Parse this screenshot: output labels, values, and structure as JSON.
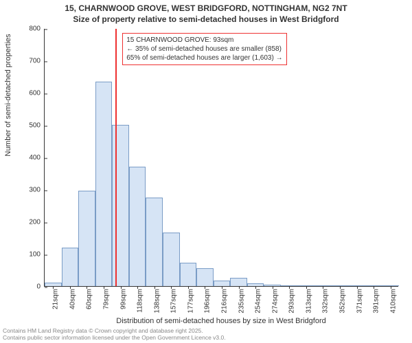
{
  "title": {
    "line1": "15, CHARNWOOD GROVE, WEST BRIDGFORD, NOTTINGHAM, NG2 7NT",
    "line2": "Size of property relative to semi-detached houses in West Bridgford"
  },
  "chart": {
    "type": "histogram",
    "ylim": [
      0,
      800
    ],
    "ytick_step": 100,
    "yticks": [
      0,
      100,
      200,
      300,
      400,
      500,
      600,
      700,
      800
    ],
    "categories": [
      "21sqm",
      "40sqm",
      "60sqm",
      "79sqm",
      "99sqm",
      "118sqm",
      "138sqm",
      "157sqm",
      "177sqm",
      "196sqm",
      "216sqm",
      "235sqm",
      "254sqm",
      "274sqm",
      "293sqm",
      "313sqm",
      "332sqm",
      "352sqm",
      "371sqm",
      "391sqm",
      "410sqm"
    ],
    "values": [
      10,
      120,
      295,
      635,
      500,
      370,
      275,
      165,
      73,
      55,
      18,
      25,
      8,
      5,
      3,
      2,
      2,
      0,
      2,
      0,
      2
    ],
    "bar_fill": "#d6e4f5",
    "bar_stroke": "#7a9cc6",
    "bar_stroke_width": 1,
    "background_color": "#ffffff",
    "axis_color": "#333333",
    "tick_fontsize": 10,
    "label_fontsize": 11,
    "ylabel": "Number of semi-detached properties",
    "xlabel": "Distribution of semi-detached houses by size in West Bridgford",
    "refline_x": 93,
    "refline_color": "#ee3030",
    "annotation": {
      "border_color": "#ee3030",
      "lines": [
        "15 CHARNWOOD GROVE: 93sqm",
        "← 35% of semi-detached houses are smaller (858)",
        "65% of semi-detached houses are larger (1,603) →"
      ]
    }
  },
  "footer": {
    "line1": "Contains HM Land Registry data © Crown copyright and database right 2025.",
    "line2": "Contains public sector information licensed under the Open Government Licence v3.0."
  }
}
